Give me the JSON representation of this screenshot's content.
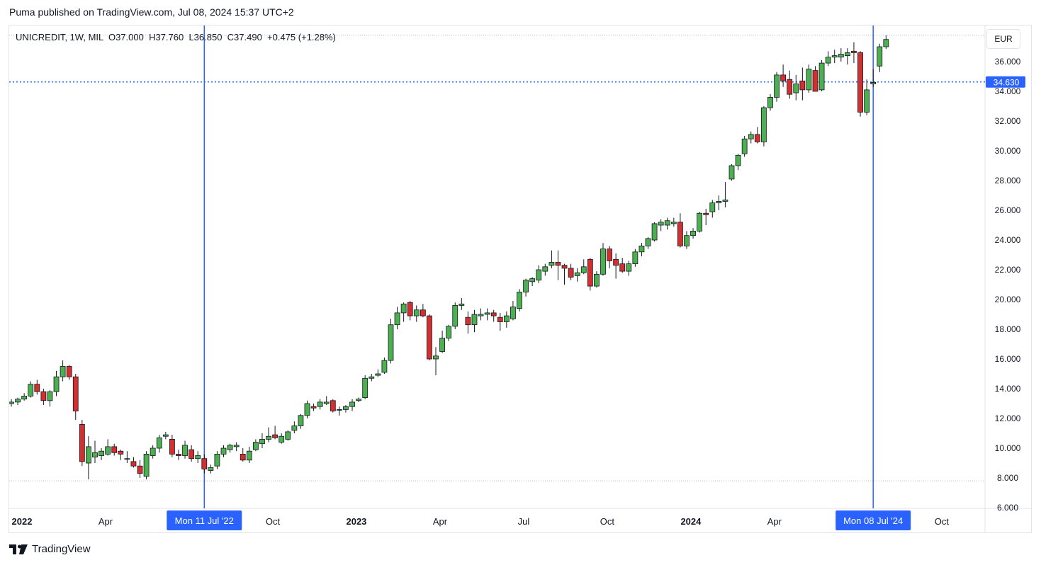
{
  "header": {
    "text": "Puma published on TradingView.com, Jul 08, 2024 15:37 UTC+2"
  },
  "legend": {
    "text": "UNICREDIT, 1W, MIL  O37.000  H37.760  L36.850  C37.490  +0.475 (+1.28%)"
  },
  "currency": "EUR",
  "footer": {
    "brand": "TradingView"
  },
  "colors": {
    "up": "#4caf50",
    "down": "#d32f2f",
    "wick": "#131722",
    "marker": "#2962ff",
    "grid": "#b2b5be"
  },
  "chart_data": {
    "type": "candlestick",
    "symbol": "UNICREDIT",
    "interval": "1W",
    "exchange": "MIL",
    "last_ohlc": {
      "open": 37.0,
      "high": 37.76,
      "low": 36.85,
      "close": 37.49,
      "change": 0.475,
      "change_pct": 1.28
    },
    "ylim": [
      6,
      38
    ],
    "y_ticks": [
      "6.000",
      "8.000",
      "10.000",
      "12.000",
      "14.000",
      "16.000",
      "18.000",
      "20.000",
      "22.000",
      "24.000",
      "26.000",
      "28.000",
      "30.000",
      "32.000",
      "34.000",
      "36.000"
    ],
    "x_ticks": [
      "2022",
      "Apr",
      "Jul",
      "Oct",
      "2023",
      "Apr",
      "Jul",
      "Oct",
      "2024",
      "Apr",
      "Jul",
      "Oct"
    ],
    "x_tick_index": [
      0,
      13,
      26,
      39,
      52,
      65,
      78,
      91,
      104,
      117,
      130,
      143
    ],
    "bold_x_ticks": [
      "2022",
      "2023",
      "2024"
    ],
    "horizontal_line": {
      "value": 34.63,
      "label": "34.630",
      "style": "dotted"
    },
    "dotted_levels": [
      37.78,
      7.8
    ],
    "vertical_markers": [
      {
        "index": 30,
        "label": "Mon 11 Jul '22"
      },
      {
        "index": 134,
        "label": "Mon 08 Jul '24"
      }
    ],
    "candles": [
      [
        13.0,
        13.3,
        12.8,
        13.1
      ],
      [
        13.1,
        13.4,
        12.9,
        13.3
      ],
      [
        13.3,
        13.7,
        13.2,
        13.5
      ],
      [
        13.5,
        14.5,
        13.4,
        14.3
      ],
      [
        14.3,
        14.6,
        13.6,
        13.8
      ],
      [
        13.8,
        14.0,
        12.9,
        13.2
      ],
      [
        13.2,
        13.9,
        12.8,
        13.8
      ],
      [
        13.8,
        15.2,
        13.5,
        14.8
      ],
      [
        14.8,
        15.9,
        14.5,
        15.5
      ],
      [
        15.5,
        15.6,
        14.6,
        14.8
      ],
      [
        14.8,
        15.0,
        11.9,
        12.5
      ],
      [
        11.6,
        11.9,
        8.8,
        9.1
      ],
      [
        9.0,
        10.8,
        7.9,
        10.1
      ],
      [
        9.4,
        10.5,
        9.0,
        9.7
      ],
      [
        9.5,
        10.0,
        9.2,
        9.8
      ],
      [
        9.6,
        10.6,
        9.5,
        10.1
      ],
      [
        10.1,
        10.3,
        9.5,
        9.7
      ],
      [
        9.8,
        9.9,
        9.2,
        9.6
      ],
      [
        9.3,
        9.8,
        9.0,
        9.3
      ],
      [
        9.1,
        9.4,
        8.7,
        8.8
      ],
      [
        8.8,
        9.2,
        8.0,
        8.3
      ],
      [
        8.1,
        9.8,
        7.9,
        9.6
      ],
      [
        9.5,
        10.2,
        9.3,
        10.0
      ],
      [
        10.0,
        10.9,
        9.7,
        10.7
      ],
      [
        10.8,
        11.1,
        10.6,
        10.9
      ],
      [
        10.6,
        10.9,
        9.4,
        9.6
      ],
      [
        9.6,
        9.9,
        9.2,
        9.5
      ],
      [
        9.5,
        10.5,
        9.3,
        10.2
      ],
      [
        9.9,
        10.2,
        9.1,
        9.3
      ],
      [
        9.3,
        9.8,
        9.0,
        9.5
      ],
      [
        9.3,
        9.6,
        8.3,
        8.6
      ],
      [
        8.5,
        8.9,
        8.3,
        8.7
      ],
      [
        8.8,
        9.8,
        8.6,
        9.6
      ],
      [
        9.6,
        10.2,
        9.4,
        10.0
      ],
      [
        9.9,
        10.3,
        9.7,
        10.2
      ],
      [
        10.1,
        10.4,
        9.8,
        10.2
      ],
      [
        9.6,
        10.0,
        9.1,
        9.2
      ],
      [
        9.2,
        10.1,
        9.0,
        9.8
      ],
      [
        9.9,
        10.6,
        9.8,
        10.4
      ],
      [
        10.3,
        11.0,
        10.0,
        10.6
      ],
      [
        10.6,
        11.4,
        10.4,
        10.8
      ],
      [
        10.9,
        11.5,
        10.6,
        10.7
      ],
      [
        10.4,
        11.0,
        10.3,
        10.8
      ],
      [
        10.6,
        11.2,
        10.5,
        11.1
      ],
      [
        11.2,
        11.8,
        11.0,
        11.5
      ],
      [
        11.5,
        12.3,
        11.3,
        12.2
      ],
      [
        12.2,
        13.2,
        12.0,
        13.0
      ],
      [
        12.8,
        13.0,
        12.5,
        12.7
      ],
      [
        12.8,
        13.3,
        12.6,
        13.1
      ],
      [
        13.0,
        13.5,
        12.9,
        13.1
      ],
      [
        13.2,
        13.3,
        12.4,
        12.5
      ],
      [
        12.6,
        12.8,
        12.2,
        12.6
      ],
      [
        12.6,
        12.9,
        12.4,
        12.8
      ],
      [
        12.8,
        13.3,
        12.5,
        13.1
      ],
      [
        13.2,
        13.4,
        13.1,
        13.3
      ],
      [
        13.4,
        14.9,
        13.3,
        14.7
      ],
      [
        14.7,
        15.0,
        14.5,
        14.8
      ],
      [
        14.9,
        15.3,
        14.8,
        15.0
      ],
      [
        15.1,
        16.1,
        15.0,
        15.9
      ],
      [
        15.9,
        18.7,
        15.7,
        18.3
      ],
      [
        18.3,
        19.5,
        18.0,
        19.1
      ],
      [
        19.1,
        19.8,
        18.5,
        19.7
      ],
      [
        19.8,
        19.9,
        18.6,
        18.9
      ],
      [
        18.9,
        19.6,
        18.5,
        19.3
      ],
      [
        19.3,
        19.7,
        18.8,
        18.9
      ],
      [
        18.9,
        19.0,
        15.9,
        16.0
      ],
      [
        16.0,
        16.8,
        14.9,
        16.2
      ],
      [
        16.5,
        17.9,
        16.4,
        17.4
      ],
      [
        17.4,
        18.3,
        17.2,
        18.2
      ],
      [
        18.2,
        19.8,
        18.0,
        19.6
      ],
      [
        19.6,
        20.1,
        19.3,
        19.7
      ],
      [
        18.8,
        19.2,
        17.7,
        18.3
      ],
      [
        18.3,
        19.3,
        17.8,
        19.0
      ],
      [
        18.9,
        19.4,
        18.6,
        19.0
      ],
      [
        19.0,
        19.4,
        18.6,
        19.1
      ],
      [
        19.1,
        19.3,
        18.5,
        18.9
      ],
      [
        18.8,
        19.1,
        17.9,
        18.5
      ],
      [
        18.5,
        19.2,
        18.1,
        18.9
      ],
      [
        18.7,
        19.9,
        18.6,
        19.5
      ],
      [
        19.4,
        20.7,
        19.2,
        20.5
      ],
      [
        20.5,
        21.4,
        20.2,
        21.3
      ],
      [
        21.2,
        21.5,
        20.9,
        21.4
      ],
      [
        21.3,
        22.3,
        21.1,
        22.0
      ],
      [
        21.9,
        22.4,
        21.6,
        22.2
      ],
      [
        22.3,
        23.3,
        22.1,
        22.5
      ],
      [
        22.5,
        23.3,
        21.3,
        22.3
      ],
      [
        22.3,
        22.4,
        21.0,
        22.1
      ],
      [
        22.1,
        22.4,
        21.3,
        21.5
      ],
      [
        21.6,
        22.1,
        21.2,
        21.8
      ],
      [
        21.8,
        22.7,
        21.7,
        22.2
      ],
      [
        22.7,
        22.8,
        20.6,
        20.9
      ],
      [
        20.9,
        21.9,
        20.8,
        21.7
      ],
      [
        21.7,
        23.8,
        21.6,
        23.4
      ],
      [
        23.4,
        23.6,
        22.1,
        22.6
      ],
      [
        22.7,
        23.1,
        21.4,
        22.3
      ],
      [
        22.4,
        22.8,
        21.8,
        21.9
      ],
      [
        21.9,
        22.6,
        21.6,
        22.4
      ],
      [
        22.4,
        23.4,
        22.2,
        23.2
      ],
      [
        23.2,
        23.8,
        22.9,
        23.6
      ],
      [
        23.6,
        24.2,
        23.4,
        24.1
      ],
      [
        24.0,
        25.2,
        23.9,
        25.1
      ],
      [
        25.0,
        25.4,
        24.6,
        25.2
      ],
      [
        25.0,
        25.5,
        24.7,
        25.3
      ],
      [
        25.1,
        25.5,
        24.9,
        25.2
      ],
      [
        25.2,
        25.8,
        23.5,
        23.6
      ],
      [
        23.6,
        24.6,
        23.4,
        24.3
      ],
      [
        24.3,
        24.8,
        24.1,
        24.6
      ],
      [
        24.6,
        25.9,
        24.5,
        25.8
      ],
      [
        25.8,
        26.1,
        25.0,
        25.7
      ],
      [
        25.9,
        26.7,
        25.5,
        26.5
      ],
      [
        26.5,
        27.0,
        26.0,
        26.6
      ],
      [
        26.6,
        27.9,
        26.2,
        26.7
      ],
      [
        28.1,
        29.1,
        28.0,
        29.0
      ],
      [
        29.0,
        29.8,
        28.7,
        29.7
      ],
      [
        29.8,
        31.0,
        29.6,
        30.8
      ],
      [
        30.8,
        31.3,
        30.5,
        31.1
      ],
      [
        31.1,
        31.6,
        30.5,
        30.6
      ],
      [
        30.6,
        33.0,
        30.3,
        32.9
      ],
      [
        32.9,
        33.8,
        32.7,
        33.6
      ],
      [
        33.6,
        35.3,
        33.3,
        35.1
      ],
      [
        35.1,
        35.8,
        34.3,
        34.7
      ],
      [
        34.8,
        35.4,
        33.5,
        33.8
      ],
      [
        33.9,
        35.1,
        33.4,
        34.5
      ],
      [
        34.7,
        35.6,
        33.4,
        34.1
      ],
      [
        34.1,
        35.8,
        33.9,
        35.5
      ],
      [
        35.4,
        35.7,
        34.0,
        34.0
      ],
      [
        34.1,
        36.1,
        34.0,
        35.9
      ],
      [
        35.9,
        36.7,
        35.7,
        36.3
      ],
      [
        36.3,
        36.8,
        35.9,
        36.4
      ],
      [
        36.3,
        36.9,
        36.0,
        36.5
      ],
      [
        36.4,
        36.9,
        35.8,
        36.6
      ],
      [
        36.7,
        37.3,
        35.9,
        36.6
      ],
      [
        36.6,
        36.7,
        32.3,
        32.6
      ],
      [
        32.6,
        34.8,
        32.4,
        34.1
      ],
      [
        34.5,
        35.5,
        34.3,
        34.6
      ],
      [
        35.7,
        37.2,
        35.3,
        37.0
      ],
      [
        37.0,
        37.76,
        36.85,
        37.49
      ]
    ]
  }
}
